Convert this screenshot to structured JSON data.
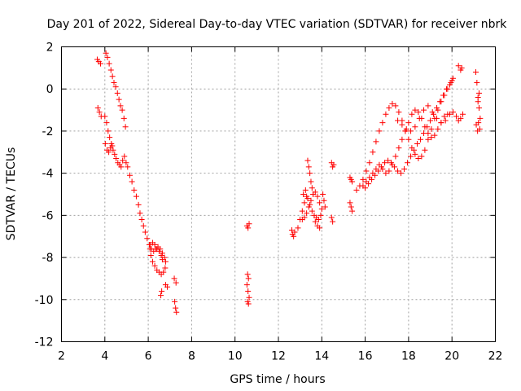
{
  "chart_data": {
    "type": "scatter",
    "title": "Day 201 of 2022, Sidereal Day-to-day VTEC variation (SDTVAR) for receiver nbrk",
    "xlabel": "GPS time / hours",
    "ylabel": "SDTVAR / TECUs",
    "xlim": [
      2,
      22
    ],
    "ylim": [
      -12,
      2
    ],
    "xticks": [
      2,
      4,
      6,
      8,
      10,
      12,
      14,
      16,
      18,
      20,
      22
    ],
    "yticks": [
      -12,
      -10,
      -8,
      -6,
      -4,
      -2,
      0,
      2
    ],
    "grid": true,
    "marker": "plus",
    "color": "#ff0000",
    "series": [
      {
        "name": "SDTVAR",
        "x": [
          3.65,
          3.72,
          3.8,
          3.68,
          3.75,
          3.83,
          4.05,
          4.12,
          4.2,
          4.28,
          4.35,
          4.42,
          4.5,
          4.58,
          4.65,
          4.72,
          4.8,
          4.88,
          4.95,
          4.0,
          4.08,
          4.15,
          4.22,
          4.3,
          4.38,
          4.45,
          4.52,
          4.6,
          4.68,
          4.75,
          4.82,
          4.9,
          4.98,
          5.05,
          4.02,
          4.1,
          4.18,
          4.26,
          4.34,
          5.15,
          5.25,
          5.35,
          5.45,
          5.55,
          5.62,
          5.7,
          5.78,
          5.86,
          5.95,
          6.05,
          6.15,
          6.25,
          6.35,
          6.45,
          6.55,
          6.65,
          6.75,
          6.8,
          6.78,
          6.7,
          6.6,
          6.5,
          6.4,
          6.3,
          6.2,
          6.12,
          6.08,
          6.1,
          6.2,
          6.3,
          6.4,
          6.5,
          6.6,
          6.65,
          6.58,
          6.62,
          6.8,
          6.88,
          7.2,
          7.28,
          7.22,
          7.26,
          7.3,
          10.55,
          10.6,
          10.65,
          10.58,
          10.62,
          10.55,
          10.6,
          10.65,
          10.58,
          10.62,
          12.62,
          12.65,
          12.7,
          12.75,
          12.9,
          13.0,
          13.1,
          13.2,
          13.3,
          13.15,
          13.25,
          13.35,
          13.45,
          13.55,
          13.65,
          13.75,
          13.85,
          13.95,
          14.0,
          13.9,
          13.8,
          13.7,
          13.6,
          13.5,
          13.4,
          13.3,
          13.2,
          13.1,
          13.35,
          13.4,
          13.45,
          13.5,
          13.55,
          13.6,
          13.7,
          13.8,
          13.9,
          14.05,
          14.1,
          14.15,
          14.45,
          14.5,
          14.55,
          14.45,
          14.5,
          15.3,
          15.35,
          15.4,
          15.3,
          15.35,
          15.4,
          15.6,
          15.75,
          15.9,
          16.05,
          16.2,
          16.35,
          16.5,
          16.65,
          16.8,
          16.95,
          17.1,
          17.25,
          17.4,
          17.55,
          17.7,
          17.85,
          18.0,
          18.15,
          18.3,
          18.45,
          18.6,
          18.75,
          18.9,
          19.05,
          19.2,
          19.35,
          19.5,
          19.65,
          19.8,
          19.95,
          20.05,
          15.9,
          16.05,
          16.2,
          16.35,
          16.5,
          16.65,
          16.8,
          16.95,
          17.1,
          17.25,
          17.4,
          17.55,
          17.7,
          17.85,
          18.0,
          18.15,
          18.3,
          18.45,
          18.6,
          18.75,
          18.9,
          19.05,
          19.2,
          19.35,
          19.5,
          19.65,
          19.8,
          16.0,
          16.15,
          16.3,
          16.45,
          16.6,
          16.75,
          16.9,
          17.05,
          17.2,
          17.35,
          17.5,
          17.65,
          17.8,
          17.95,
          18.1,
          18.25,
          18.4,
          18.55,
          18.7,
          18.85,
          19.0,
          19.15,
          19.3,
          19.45,
          19.6,
          19.75,
          19.9,
          20.0,
          17.5,
          17.7,
          17.9,
          18.1,
          18.3,
          18.5,
          18.7,
          18.9,
          19.1,
          19.3,
          19.5,
          19.7,
          19.9,
          20.05,
          20.2,
          20.3,
          20.4,
          20.5,
          20.3,
          20.4,
          20.45,
          21.1,
          21.15,
          21.2,
          21.25,
          21.3,
          21.12,
          21.18,
          21.22,
          21.28,
          21.2,
          21.25
        ],
        "y": [
          1.4,
          1.3,
          1.2,
          -0.9,
          -1.1,
          -1.3,
          1.7,
          1.5,
          1.2,
          0.9,
          0.6,
          0.3,
          0.1,
          -0.2,
          -0.5,
          -0.8,
          -1.0,
          -1.4,
          -1.8,
          -1.3,
          -1.6,
          -2.0,
          -2.3,
          -2.6,
          -2.9,
          -3.1,
          -3.3,
          -3.5,
          -3.6,
          -3.7,
          -3.4,
          -3.2,
          -3.5,
          -3.7,
          -2.6,
          -2.9,
          -3.0,
          -2.8,
          -2.7,
          -4.1,
          -4.4,
          -4.8,
          -5.1,
          -5.5,
          -5.9,
          -6.2,
          -6.5,
          -6.8,
          -7.1,
          -7.4,
          -7.6,
          -7.7,
          -7.6,
          -7.5,
          -7.6,
          -7.8,
          -8.0,
          -8.2,
          -8.5,
          -8.7,
          -8.8,
          -8.7,
          -8.6,
          -8.4,
          -8.2,
          -7.9,
          -7.6,
          -7.4,
          -7.3,
          -7.4,
          -7.6,
          -7.7,
          -7.9,
          -8.1,
          -9.8,
          -9.6,
          -9.3,
          -9.4,
          -9.0,
          -9.2,
          -10.1,
          -10.4,
          -10.6,
          -6.5,
          -6.6,
          -6.4,
          -8.8,
          -9.0,
          -9.3,
          -9.6,
          -9.9,
          -10.1,
          -10.2,
          -6.7,
          -6.9,
          -7.0,
          -6.8,
          -6.6,
          -6.2,
          -5.8,
          -5.4,
          -5.1,
          -5.0,
          -4.8,
          -5.2,
          -5.5,
          -5.8,
          -6.0,
          -6.1,
          -6.2,
          -6.0,
          -5.7,
          -5.4,
          -5.1,
          -4.9,
          -5.0,
          -5.3,
          -5.6,
          -5.9,
          -6.1,
          -6.2,
          -3.4,
          -3.7,
          -4.0,
          -4.4,
          -4.7,
          -5.0,
          -6.3,
          -6.5,
          -6.6,
          -5.0,
          -5.3,
          -5.6,
          -3.5,
          -3.7,
          -3.6,
          -6.1,
          -6.3,
          -4.2,
          -4.3,
          -4.4,
          -5.4,
          -5.6,
          -5.8,
          -4.8,
          -4.6,
          -4.3,
          -3.9,
          -3.5,
          -3.0,
          -2.5,
          -2.0,
          -1.6,
          -1.2,
          -0.9,
          -0.7,
          -0.8,
          -1.1,
          -1.5,
          -2.0,
          -2.4,
          -2.8,
          -3.1,
          -3.3,
          -3.2,
          -2.9,
          -2.4,
          -1.9,
          -1.4,
          -1.0,
          -0.6,
          -0.3,
          0.0,
          0.3,
          0.5,
          -4.6,
          -4.4,
          -4.2,
          -4.0,
          -3.8,
          -3.6,
          -3.8,
          -4.0,
          -3.9,
          -3.6,
          -3.2,
          -2.8,
          -2.4,
          -2.0,
          -1.6,
          -1.2,
          -1.0,
          -1.1,
          -1.4,
          -1.8,
          -2.1,
          -2.3,
          -2.2,
          -1.9,
          -1.6,
          -1.3,
          -1.2,
          -4.7,
          -4.5,
          -4.3,
          -4.1,
          -3.9,
          -3.7,
          -3.5,
          -3.4,
          -3.5,
          -3.7,
          -3.9,
          -4.0,
          -3.8,
          -3.5,
          -3.2,
          -2.9,
          -2.6,
          -2.4,
          -2.1,
          -1.8,
          -1.5,
          -1.2,
          -0.9,
          -0.6,
          -0.3,
          0.0,
          0.2,
          0.4,
          -1.5,
          -1.7,
          -1.9,
          -2.0,
          -1.8,
          -1.4,
          -1.0,
          -0.8,
          -1.1,
          -1.4,
          -1.6,
          -1.5,
          -1.2,
          -1.1,
          -1.3,
          -1.5,
          -1.4,
          -1.2,
          1.1,
          0.9,
          1.0,
          0.8,
          0.3,
          -0.4,
          -0.9,
          -1.4,
          -1.7,
          -2.0,
          -1.6,
          -1.9,
          -0.6,
          -0.2
        ]
      }
    ]
  }
}
